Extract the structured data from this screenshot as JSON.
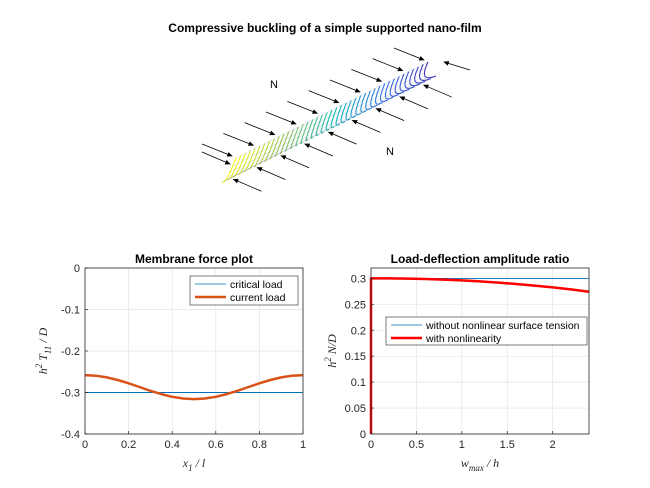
{
  "figure": {
    "title": "Compressive buckling of a simple supported nano-film",
    "load_label_top": "N",
    "load_label_bottom": "N"
  },
  "chart_data": [
    {
      "type": "line",
      "title": "Membrane force plot",
      "xlabel": "x1 / l",
      "ylabel": "h2 T11 / D",
      "xlim": [
        0,
        1
      ],
      "ylim": [
        -0.4,
        0
      ],
      "xticks": [
        "0",
        "0.2",
        "0.4",
        "0.6",
        "0.8",
        "1"
      ],
      "yticks": [
        "0",
        "-0.1",
        "-0.2",
        "-0.3",
        "-0.4"
      ],
      "grid": true,
      "legend_position": "top-right",
      "series": [
        {
          "name": "critical load",
          "color": "#0072BD",
          "x": [
            0,
            1
          ],
          "y": [
            -0.3,
            -0.3
          ]
        },
        {
          "name": "current load",
          "color": "#D95319",
          "x": [
            0,
            0.05,
            0.1,
            0.15,
            0.2,
            0.25,
            0.3,
            0.35,
            0.4,
            0.45,
            0.5,
            0.55,
            0.6,
            0.65,
            0.7,
            0.75,
            0.8,
            0.85,
            0.9,
            0.95,
            1
          ],
          "y": [
            -0.258,
            -0.2594,
            -0.2635,
            -0.2699,
            -0.2779,
            -0.2868,
            -0.2958,
            -0.3039,
            -0.3104,
            -0.3145,
            -0.316,
            -0.3145,
            -0.3104,
            -0.3039,
            -0.2958,
            -0.2868,
            -0.2779,
            -0.2699,
            -0.2635,
            -0.2594,
            -0.258
          ]
        }
      ]
    },
    {
      "type": "line",
      "title": "Load-deflection amplitude ratio",
      "xlabel": "wmax / h",
      "ylabel": "h2 N/D",
      "xlim": [
        0,
        2.4
      ],
      "ylim": [
        0,
        0.32
      ],
      "xticks": [
        "0",
        "0.5",
        "1",
        "1.5",
        "2"
      ],
      "yticks": [
        "0.3",
        "0.25",
        "0.2",
        "0.15",
        "0.1",
        "0.05",
        "0"
      ],
      "grid": true,
      "legend_position": "center-right",
      "series": [
        {
          "name": "without nonlinear surface tension",
          "color": "#0072BD",
          "x": [
            0,
            2.4
          ],
          "y": [
            0.3,
            0.3
          ]
        },
        {
          "name": "with nonlinearity",
          "color": "#FF0000",
          "x": [
            0,
            0,
            0.2,
            0.4,
            0.6,
            0.8,
            1.0,
            1.2,
            1.4,
            1.6,
            1.8,
            2.0,
            2.2,
            2.4
          ],
          "y": [
            0,
            0.3,
            0.2999,
            0.2996,
            0.2988,
            0.2976,
            0.2961,
            0.2942,
            0.2919,
            0.2892,
            0.2861,
            0.2826,
            0.2787,
            0.2744
          ]
        }
      ]
    }
  ]
}
